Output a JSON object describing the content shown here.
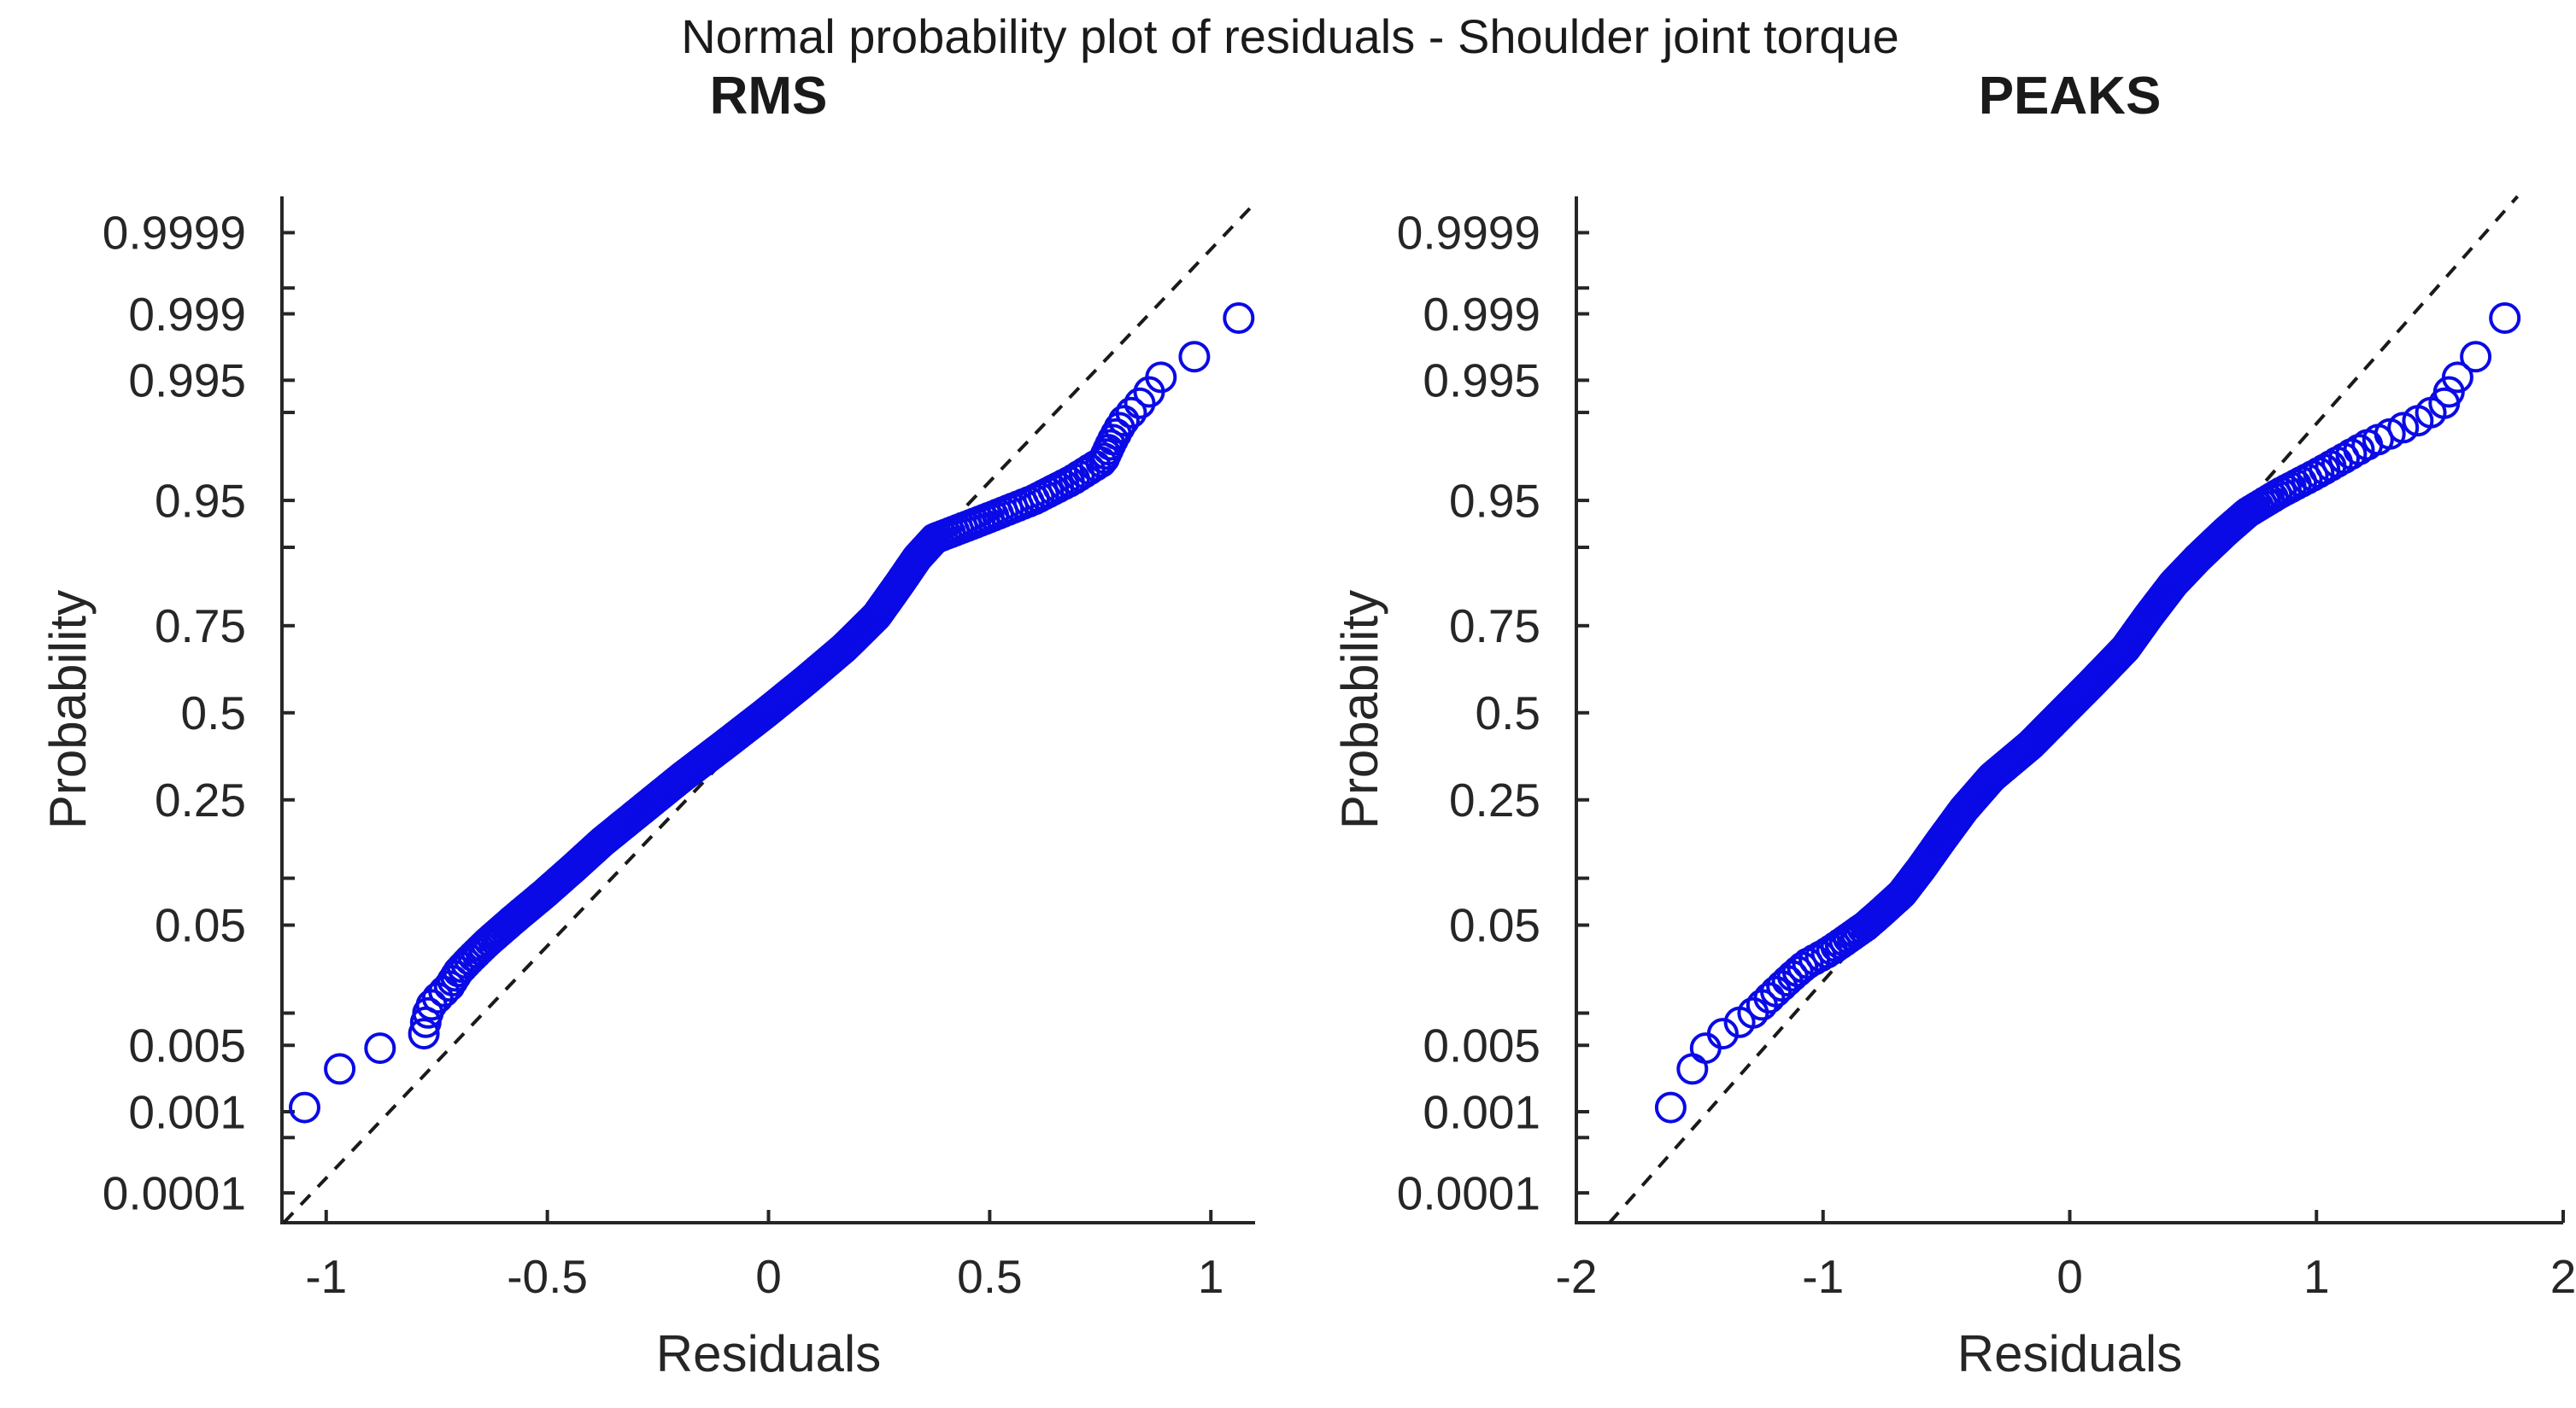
{
  "chart_data": {
    "type": "scatter",
    "figure_title": "Normal probability plot of residuals - Shoulder joint torque",
    "marker": {
      "shape": "open-circle",
      "color": "#0a0ae6",
      "radius_px": 16.5,
      "stroke_px": 4
    },
    "reference_line": {
      "style": "dashed",
      "color": "#1a1a1a"
    },
    "axis_color": "#262626",
    "probability_axis": {
      "scale": "normal-quantile",
      "z_range": [
        -3.95,
        4.0
      ],
      "ticks": [
        {
          "p": 0.0001,
          "label": "0.0001"
        },
        {
          "p": 0.0005,
          "label": null
        },
        {
          "p": 0.001,
          "label": "0.001"
        },
        {
          "p": 0.005,
          "label": "0.005"
        },
        {
          "p": 0.01,
          "label": null
        },
        {
          "p": 0.05,
          "label": "0.05"
        },
        {
          "p": 0.1,
          "label": null
        },
        {
          "p": 0.25,
          "label": "0.25"
        },
        {
          "p": 0.5,
          "label": "0.5"
        },
        {
          "p": 0.75,
          "label": "0.75"
        },
        {
          "p": 0.9,
          "label": null
        },
        {
          "p": 0.95,
          "label": "0.95"
        },
        {
          "p": 0.99,
          "label": null
        },
        {
          "p": 0.995,
          "label": "0.995"
        },
        {
          "p": 0.999,
          "label": "0.999"
        },
        {
          "p": 0.9995,
          "label": null
        },
        {
          "p": 0.9999,
          "label": "0.9999"
        }
      ]
    },
    "subplots": [
      {
        "title": "RMS",
        "xlabel": "Residuals",
        "ylabel": "Probability",
        "xlim": [
          -1.1,
          1.1
        ],
        "xticks": [
          {
            "v": -1,
            "label": "-1"
          },
          {
            "v": -0.5,
            "label": "-0.5"
          },
          {
            "v": 0,
            "label": "0"
          },
          {
            "v": 0.5,
            "label": "0.5"
          },
          {
            "v": 1,
            "label": "1"
          }
        ],
        "n_points": 560,
        "fit_line": {
          "slope": 0.278,
          "intercept": 0.002
        },
        "quantile_curve_zx": [
          [
            -3.1,
            -1.06
          ],
          [
            -2.76,
            -0.97
          ],
          [
            -2.6,
            -0.88
          ],
          [
            -2.5,
            -0.78
          ],
          [
            -2.42,
            -0.776
          ],
          [
            -2.34,
            -0.772
          ],
          [
            -2.25,
            -0.76
          ],
          [
            -2.12,
            -0.722
          ],
          [
            -2.0,
            -0.7
          ],
          [
            -1.9,
            -0.672
          ],
          [
            -1.78,
            -0.636
          ],
          [
            -1.6,
            -0.576
          ],
          [
            -1.4,
            -0.506
          ],
          [
            -1.2,
            -0.44
          ],
          [
            -1.0,
            -0.376
          ],
          [
            -0.75,
            -0.286
          ],
          [
            -0.5,
            -0.196
          ],
          [
            -0.25,
            -0.1
          ],
          [
            0.0,
            -0.006
          ],
          [
            0.25,
            0.084
          ],
          [
            0.5,
            0.17
          ],
          [
            0.75,
            0.244
          ],
          [
            1.0,
            0.296
          ],
          [
            1.2,
            0.336
          ],
          [
            1.35,
            0.376
          ],
          [
            1.5,
            0.49
          ],
          [
            1.65,
            0.6
          ],
          [
            1.8,
            0.686
          ],
          [
            1.95,
            0.756
          ],
          [
            2.1,
            0.776
          ],
          [
            2.25,
            0.8
          ],
          [
            2.4,
            0.84
          ],
          [
            2.55,
            0.876
          ],
          [
            2.68,
            0.906
          ],
          [
            2.88,
            1.05
          ],
          [
            3.1,
            1.066
          ]
        ]
      },
      {
        "title": "PEAKS",
        "xlabel": "Residuals",
        "ylabel": "Probability",
        "xlim": [
          -2,
          2
        ],
        "xticks": [
          {
            "v": -2,
            "label": "-2"
          },
          {
            "v": -1,
            "label": "-1"
          },
          {
            "v": 0,
            "label": "0"
          },
          {
            "v": 1,
            "label": "1"
          },
          {
            "v": 2,
            "label": "2"
          }
        ],
        "n_points": 560,
        "fit_line": {
          "slope": 0.463,
          "intercept": -0.037
        },
        "quantile_curve_zx": [
          [
            -3.1,
            -1.63
          ],
          [
            -2.76,
            -1.53
          ],
          [
            -2.58,
            -1.47
          ],
          [
            -2.49,
            -1.41
          ],
          [
            -2.4,
            -1.34
          ],
          [
            -2.32,
            -1.28
          ],
          [
            -2.25,
            -1.24
          ],
          [
            -2.15,
            -1.186
          ],
          [
            -2.05,
            -1.13
          ],
          [
            -1.95,
            -1.07
          ],
          [
            -1.85,
            -0.976
          ],
          [
            -1.75,
            -0.9
          ],
          [
            -1.65,
            -0.826
          ],
          [
            -1.55,
            -0.766
          ],
          [
            -1.4,
            -0.68
          ],
          [
            -1.2,
            -0.6
          ],
          [
            -1.0,
            -0.526
          ],
          [
            -0.75,
            -0.43
          ],
          [
            -0.5,
            -0.316
          ],
          [
            -0.25,
            -0.16
          ],
          [
            0.0,
            -0.03
          ],
          [
            0.25,
            0.1
          ],
          [
            0.5,
            0.226
          ],
          [
            0.75,
            0.32
          ],
          [
            1.0,
            0.42
          ],
          [
            1.2,
            0.52
          ],
          [
            1.4,
            0.63
          ],
          [
            1.55,
            0.72
          ],
          [
            1.7,
            0.85
          ],
          [
            1.85,
            1.0
          ],
          [
            1.97,
            1.11
          ],
          [
            2.08,
            1.21
          ],
          [
            2.18,
            1.32
          ],
          [
            2.28,
            1.43
          ],
          [
            2.4,
            1.52
          ],
          [
            2.55,
            1.55
          ],
          [
            2.76,
            1.646
          ],
          [
            3.1,
            1.78
          ]
        ]
      }
    ]
  }
}
